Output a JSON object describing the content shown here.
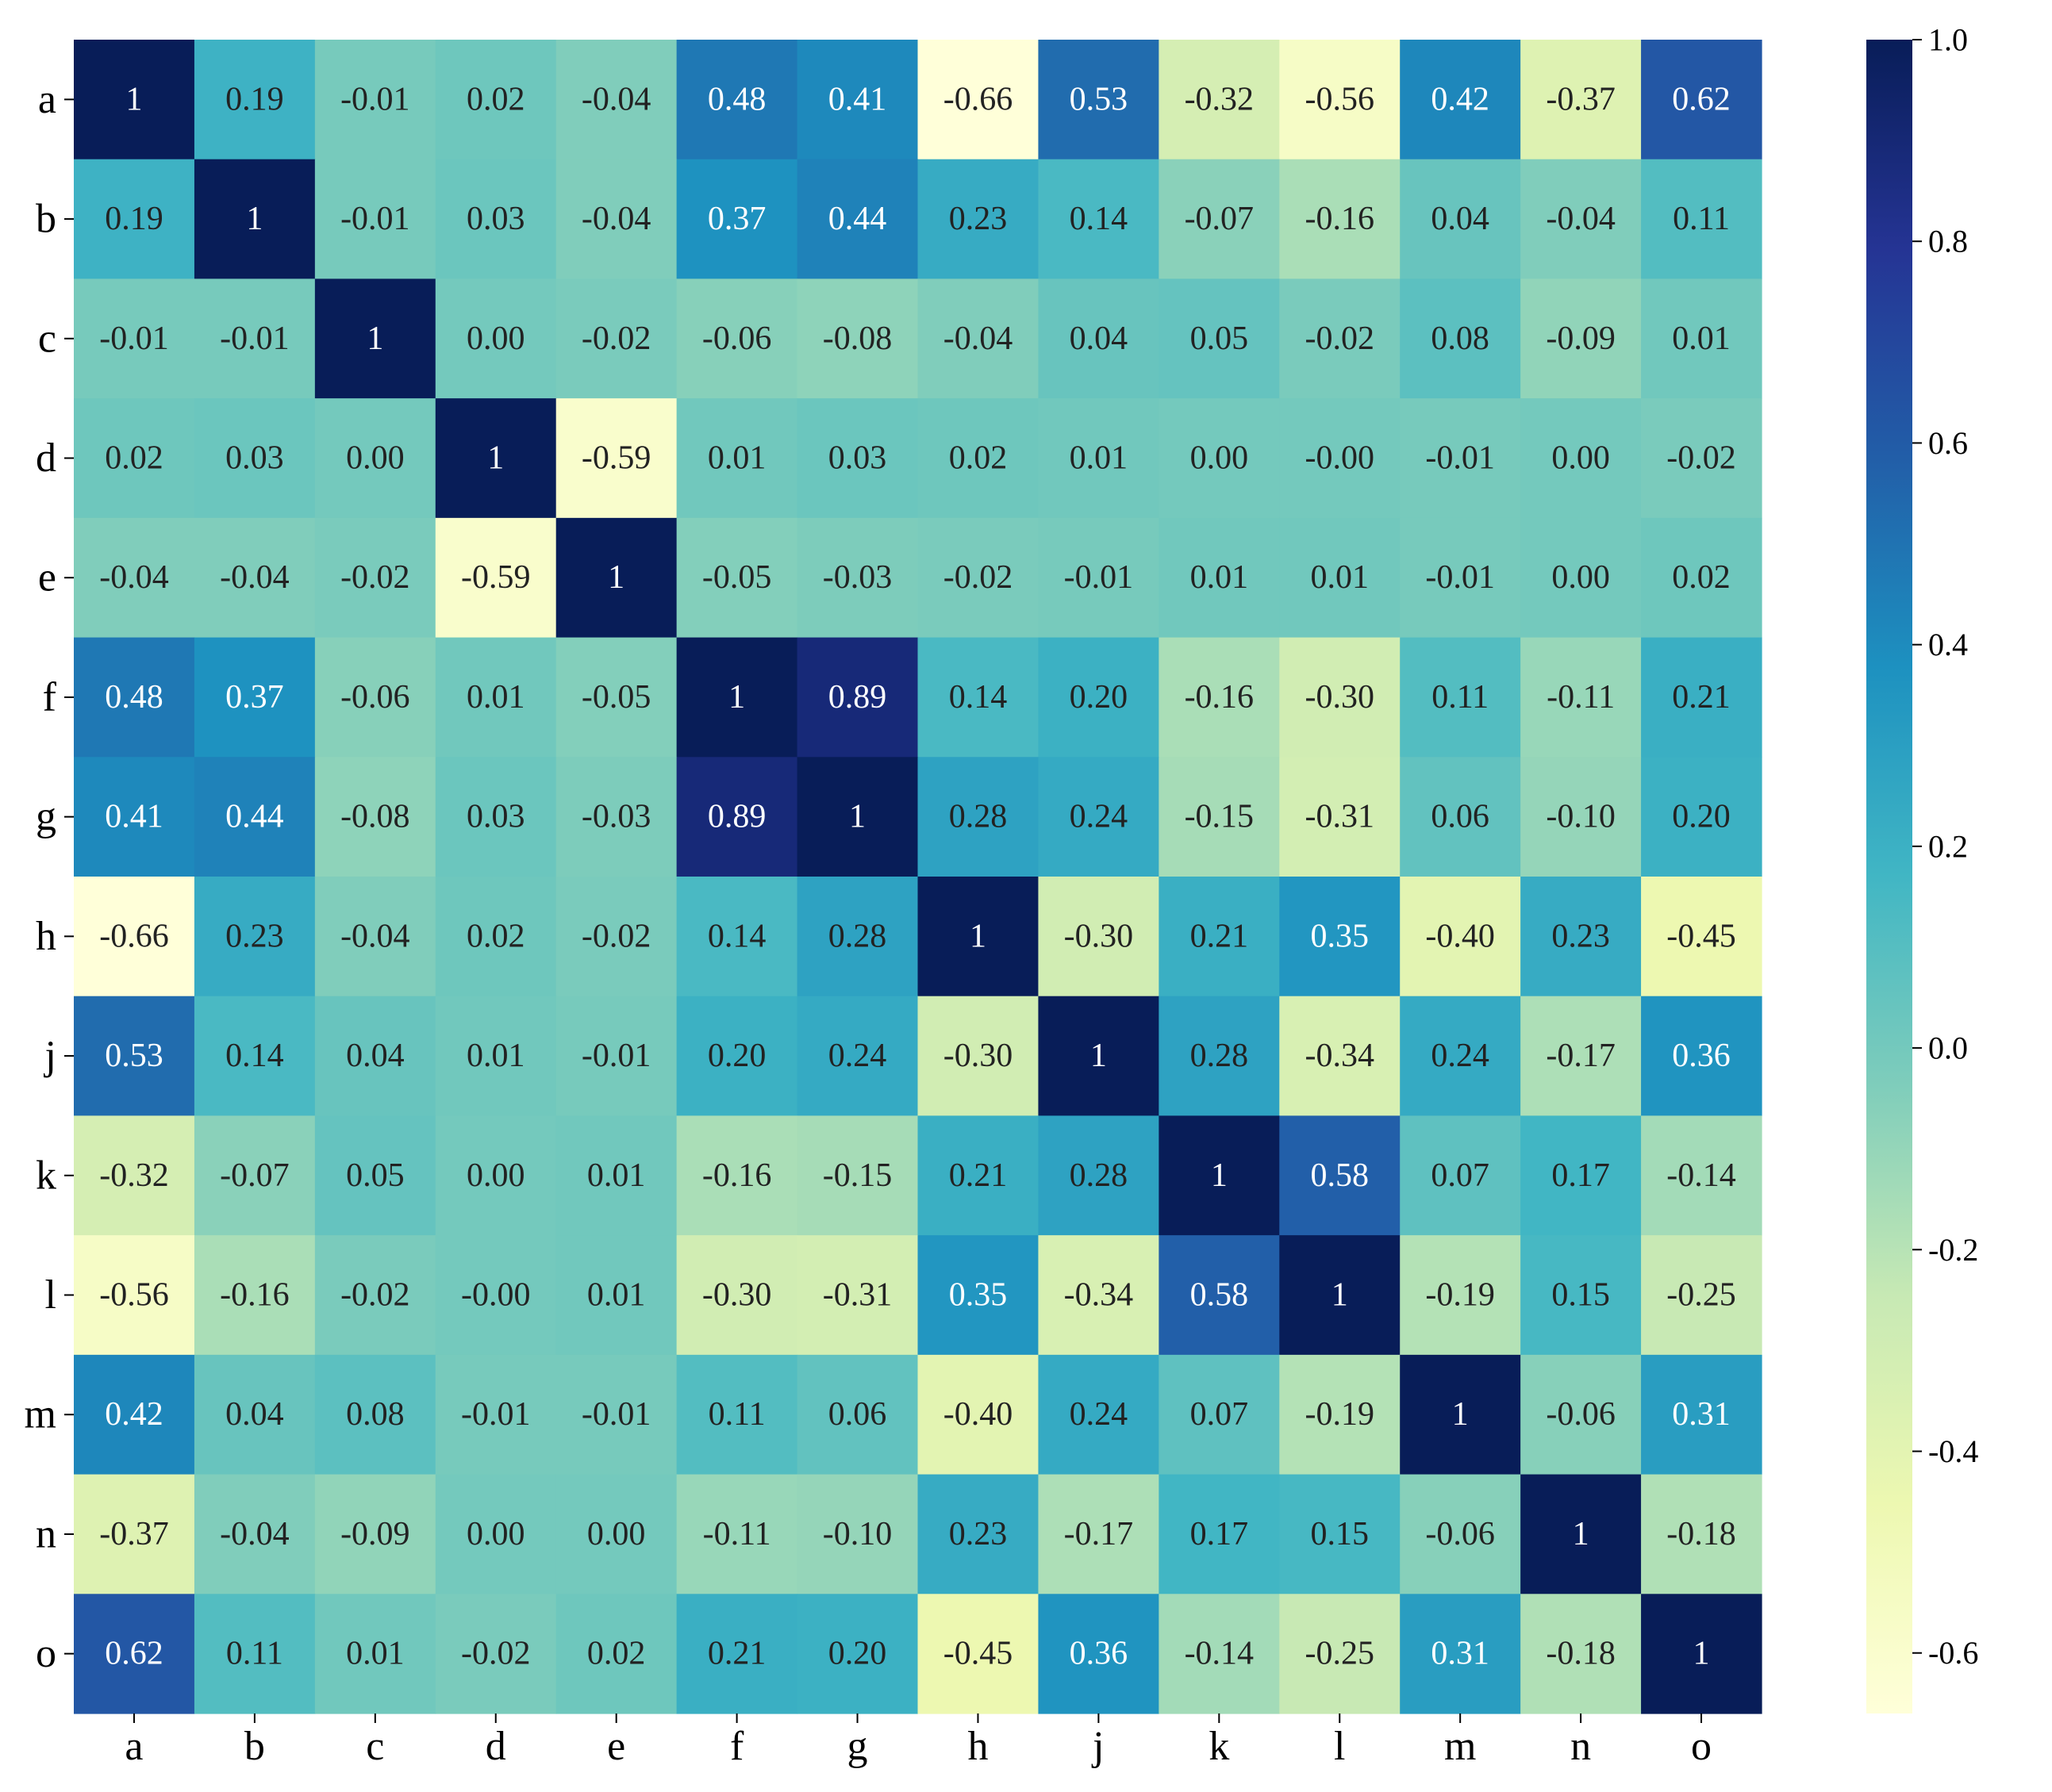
{
  "chart_data": {
    "type": "heatmap",
    "title": "",
    "xlabel": "",
    "ylabel": "",
    "rows": [
      "a",
      "b",
      "c",
      "d",
      "e",
      "f",
      "g",
      "h",
      "j",
      "k",
      "l",
      "m",
      "n",
      "o"
    ],
    "columns": [
      "a",
      "b",
      "c",
      "d",
      "e",
      "f",
      "g",
      "h",
      "j",
      "k",
      "l",
      "m",
      "n",
      "o"
    ],
    "values": [
      [
        1,
        0.19,
        -0.01,
        0.02,
        -0.04,
        0.48,
        0.41,
        -0.66,
        0.53,
        -0.32,
        -0.56,
        0.42,
        -0.37,
        0.62
      ],
      [
        0.19,
        1,
        -0.01,
        0.03,
        -0.04,
        0.37,
        0.44,
        0.23,
        0.14,
        -0.07,
        -0.16,
        0.04,
        -0.04,
        0.11
      ],
      [
        -0.01,
        -0.01,
        1,
        0.0,
        -0.02,
        -0.06,
        -0.08,
        -0.04,
        0.04,
        0.05,
        -0.02,
        0.08,
        -0.09,
        0.01
      ],
      [
        0.02,
        0.03,
        0.0,
        1,
        -0.59,
        0.01,
        0.03,
        0.02,
        0.01,
        0.0,
        -0.0,
        -0.01,
        0.0,
        -0.02
      ],
      [
        -0.04,
        -0.04,
        -0.02,
        -0.59,
        1,
        -0.05,
        -0.03,
        -0.02,
        -0.01,
        0.01,
        0.01,
        -0.01,
        0.0,
        0.02
      ],
      [
        0.48,
        0.37,
        -0.06,
        0.01,
        -0.05,
        1,
        0.89,
        0.14,
        0.2,
        -0.16,
        -0.3,
        0.11,
        -0.11,
        0.21
      ],
      [
        0.41,
        0.44,
        -0.08,
        0.03,
        -0.03,
        0.89,
        1,
        0.28,
        0.24,
        -0.15,
        -0.31,
        0.06,
        -0.1,
        0.2
      ],
      [
        -0.66,
        0.23,
        -0.04,
        0.02,
        -0.02,
        0.14,
        0.28,
        1,
        -0.3,
        0.21,
        0.35,
        -0.4,
        0.23,
        -0.45
      ],
      [
        0.53,
        0.14,
        0.04,
        0.01,
        -0.01,
        0.2,
        0.24,
        -0.3,
        1,
        0.28,
        -0.34,
        0.24,
        -0.17,
        0.36
      ],
      [
        -0.32,
        -0.07,
        0.05,
        0.0,
        0.01,
        -0.16,
        -0.15,
        0.21,
        0.28,
        1,
        0.58,
        0.07,
        0.17,
        -0.14
      ],
      [
        -0.56,
        -0.16,
        -0.02,
        -0.0,
        0.01,
        -0.3,
        -0.31,
        0.35,
        -0.34,
        0.58,
        1,
        -0.19,
        0.15,
        -0.25
      ],
      [
        0.42,
        0.04,
        0.08,
        -0.01,
        -0.01,
        0.11,
        0.06,
        -0.4,
        0.24,
        0.07,
        -0.19,
        1,
        -0.06,
        0.31
      ],
      [
        -0.37,
        -0.04,
        -0.09,
        0.0,
        0.0,
        -0.11,
        -0.1,
        0.23,
        -0.17,
        0.17,
        0.15,
        -0.06,
        1,
        -0.18
      ],
      [
        0.62,
        0.11,
        0.01,
        -0.02,
        0.02,
        0.21,
        0.2,
        -0.45,
        0.36,
        -0.14,
        -0.25,
        0.31,
        -0.18,
        1
      ]
    ],
    "labels": [
      [
        "1",
        "0.19",
        "-0.01",
        "0.02",
        "-0.04",
        "0.48",
        "0.41",
        "-0.66",
        "0.53",
        "-0.32",
        "-0.56",
        "0.42",
        "-0.37",
        "0.62"
      ],
      [
        "0.19",
        "1",
        "-0.01",
        "0.03",
        "-0.04",
        "0.37",
        "0.44",
        "0.23",
        "0.14",
        "-0.07",
        "-0.16",
        "0.04",
        "-0.04",
        "0.11"
      ],
      [
        "-0.01",
        "-0.01",
        "1",
        "0.00",
        "-0.02",
        "-0.06",
        "-0.08",
        "-0.04",
        "0.04",
        "0.05",
        "-0.02",
        "0.08",
        "-0.09",
        "0.01"
      ],
      [
        "0.02",
        "0.03",
        "0.00",
        "1",
        "-0.59",
        "0.01",
        "0.03",
        "0.02",
        "0.01",
        "0.00",
        "-0.00",
        "-0.01",
        "0.00",
        "-0.02"
      ],
      [
        "-0.04",
        "-0.04",
        "-0.02",
        "-0.59",
        "1",
        "-0.05",
        "-0.03",
        "-0.02",
        "-0.01",
        "0.01",
        "0.01",
        "-0.01",
        "0.00",
        "0.02"
      ],
      [
        "0.48",
        "0.37",
        "-0.06",
        "0.01",
        "-0.05",
        "1",
        "0.89",
        "0.14",
        "0.20",
        "-0.16",
        "-0.30",
        "0.11",
        "-0.11",
        "0.21"
      ],
      [
        "0.41",
        "0.44",
        "-0.08",
        "0.03",
        "-0.03",
        "0.89",
        "1",
        "0.28",
        "0.24",
        "-0.15",
        "-0.31",
        "0.06",
        "-0.10",
        "0.20"
      ],
      [
        "-0.66",
        "0.23",
        "-0.04",
        "0.02",
        "-0.02",
        "0.14",
        "0.28",
        "1",
        "-0.30",
        "0.21",
        "0.35",
        "-0.40",
        "0.23",
        "-0.45"
      ],
      [
        "0.53",
        "0.14",
        "0.04",
        "0.01",
        "-0.01",
        "0.20",
        "0.24",
        "-0.30",
        "1",
        "0.28",
        "-0.34",
        "0.24",
        "-0.17",
        "0.36"
      ],
      [
        "-0.32",
        "-0.07",
        "0.05",
        "0.00",
        "0.01",
        "-0.16",
        "-0.15",
        "0.21",
        "0.28",
        "1",
        "0.58",
        "0.07",
        "0.17",
        "-0.14"
      ],
      [
        "-0.56",
        "-0.16",
        "-0.02",
        "-0.00",
        "0.01",
        "-0.30",
        "-0.31",
        "0.35",
        "-0.34",
        "0.58",
        "1",
        "-0.19",
        "0.15",
        "-0.25"
      ],
      [
        "0.42",
        "0.04",
        "0.08",
        "-0.01",
        "-0.01",
        "0.11",
        "0.06",
        "-0.40",
        "0.24",
        "0.07",
        "-0.19",
        "1",
        "-0.06",
        "0.31"
      ],
      [
        "-0.37",
        "-0.04",
        "-0.09",
        "0.00",
        "0.00",
        "-0.11",
        "-0.10",
        "0.23",
        "-0.17",
        "0.17",
        "0.15",
        "-0.06",
        "1",
        "-0.18"
      ],
      [
        "0.62",
        "0.11",
        "0.01",
        "-0.02",
        "0.02",
        "0.21",
        "0.20",
        "-0.45",
        "0.36",
        "-0.14",
        "-0.25",
        "0.31",
        "-0.18",
        "1"
      ]
    ],
    "colormap": "YlGnBu",
    "colormap_stops": [
      "#ffffd9",
      "#edf8b1",
      "#c7e9b4",
      "#7fcdbb",
      "#41b6c4",
      "#1d91c0",
      "#225ea8",
      "#253494",
      "#081d58"
    ],
    "vmin": -0.66,
    "vmax": 1.0,
    "colorbar": {
      "ticks": [
        1.0,
        0.8,
        0.6,
        0.4,
        0.2,
        0.0,
        -0.2,
        -0.4,
        -0.6
      ],
      "tick_labels": [
        "1.0",
        "0.8",
        "0.6",
        "0.4",
        "0.2",
        "0.0",
        "-0.2",
        "-0.4",
        "-0.6"
      ],
      "position": "right"
    },
    "grid": false,
    "legend": "none"
  }
}
